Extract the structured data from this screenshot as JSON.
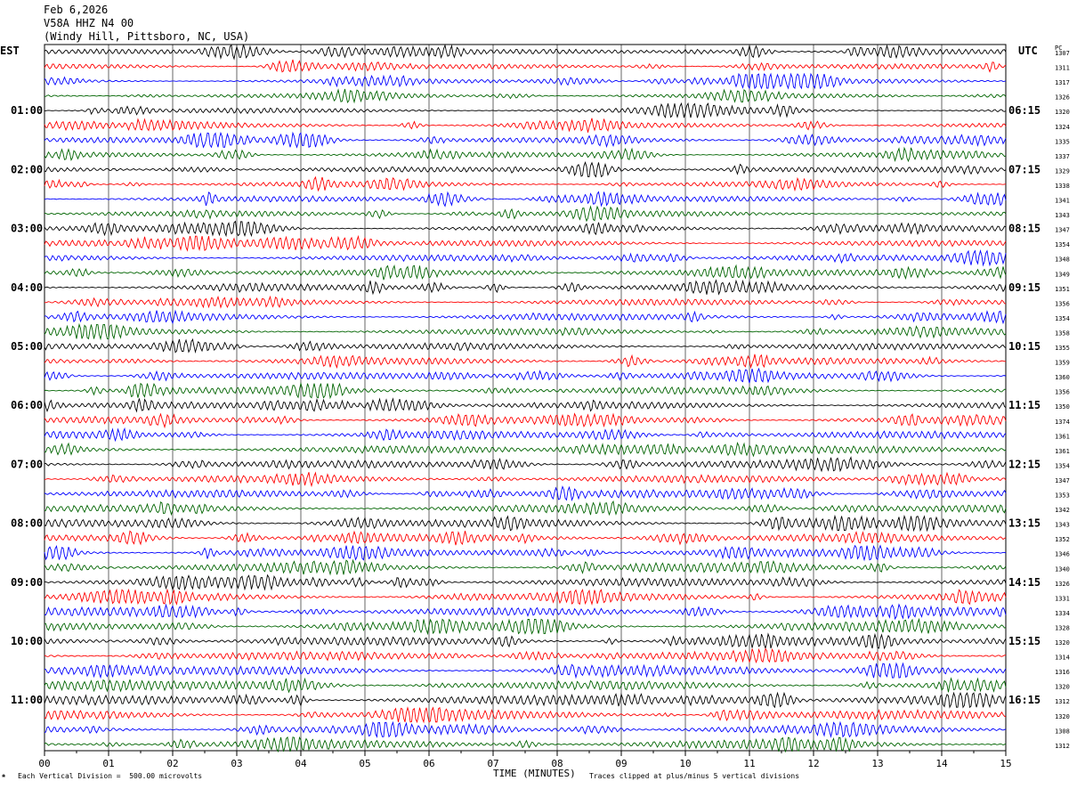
{
  "header": {
    "date": "Feb 6,2026",
    "station": "V58A HHZ N4 00",
    "location": "(Windy Hill, Pittsboro, NC, USA)"
  },
  "labels": {
    "left_tz": "EST",
    "right_tz": "UTC",
    "pc": "PC"
  },
  "footer": {
    "scale_note": "Each Vertical Division =  500.00 microvolts",
    "clip_note": "Traces clipped at plus/minus 5 vertical divisions",
    "corner_glyph": "❀"
  },
  "colors": {
    "trace_cycle": [
      "#000000",
      "#ff0000",
      "#0000ff",
      "#006400"
    ],
    "grid": "#000000"
  },
  "chart_data": {
    "type": "line",
    "title": "",
    "xlabel": "TIME (MINUTES)",
    "ylabel": "",
    "xlim": [
      0,
      15
    ],
    "x_ticks": [
      "00",
      "01",
      "02",
      "03",
      "04",
      "05",
      "06",
      "07",
      "08",
      "09",
      "10",
      "11",
      "12",
      "13",
      "14",
      "15"
    ],
    "lines_per_hour": 4,
    "left_hour_labels": [
      "01:00",
      "02:00",
      "03:00",
      "04:00",
      "05:00",
      "06:00",
      "07:00",
      "08:00",
      "09:00",
      "10:00",
      "11:00"
    ],
    "right_hour_labels": [
      "06:15",
      "07:15",
      "08:15",
      "09:15",
      "10:15",
      "11:15",
      "12:15",
      "13:15",
      "14:15",
      "15:15",
      "16:15"
    ],
    "right_values": [
      1307,
      1311,
      1317,
      1326,
      1320,
      1324,
      1335,
      1337,
      1329,
      1338,
      1341,
      1343,
      1347,
      1354,
      1348,
      1349,
      1351,
      1356,
      1354,
      1358,
      1355,
      1359,
      1360,
      1356,
      1350,
      1374,
      1361,
      1361,
      1354,
      1347,
      1353,
      1342,
      1343,
      1352,
      1346,
      1340,
      1326,
      1331,
      1334,
      1328,
      1320,
      1314,
      1316,
      1320,
      1312,
      1320,
      1308,
      1312
    ],
    "grid": true
  }
}
